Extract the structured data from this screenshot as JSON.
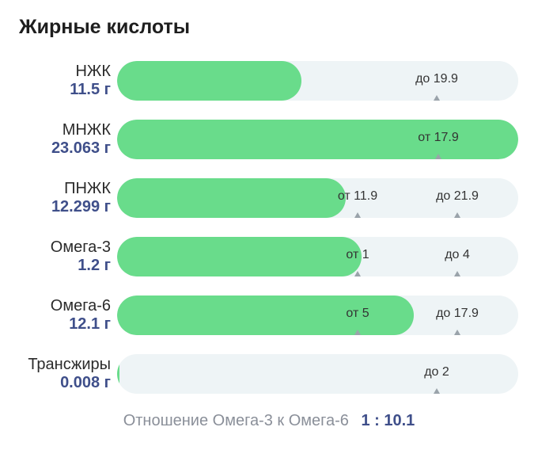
{
  "title": "Жирные кислоты",
  "colors": {
    "fill": "#69dc8b",
    "track": "#eef4f6",
    "amount": "#3f4f8a"
  },
  "chart_data": {
    "type": "bar",
    "orientation": "horizontal",
    "rows": [
      {
        "name": "НЖК",
        "amount": "11.5 г",
        "value": 11.5,
        "fill_fraction": 0.46,
        "markers": [
          {
            "text": "до 19.9",
            "value": 19.9
          }
        ]
      },
      {
        "name": "МНЖК",
        "amount": "23.063 г",
        "value": 23.063,
        "fill_fraction": 1.0,
        "markers": [
          {
            "text": "от 17.9",
            "value": 17.9
          }
        ]
      },
      {
        "name": "ПНЖК",
        "amount": "12.299 г",
        "value": 12.299,
        "fill_fraction": 0.57,
        "markers": [
          {
            "text": "от 11.9",
            "value": 11.9
          },
          {
            "text": "до 21.9",
            "value": 21.9
          }
        ]
      },
      {
        "name": "Омега-3",
        "amount": "1.2 г",
        "value": 1.2,
        "fill_fraction": 0.61,
        "markers": [
          {
            "text": "от 1",
            "value": 1
          },
          {
            "text": "до 4",
            "value": 4
          }
        ]
      },
      {
        "name": "Омега-6",
        "amount": "12.1 г",
        "value": 12.1,
        "fill_fraction": 0.74,
        "markers": [
          {
            "text": "от 5",
            "value": 5
          },
          {
            "text": "до 17.9",
            "value": 17.9
          }
        ]
      },
      {
        "name": "Трансжиры",
        "amount": "0.008 г",
        "value": 0.008,
        "fill_fraction": 0.004,
        "markers": [
          {
            "text": "до 2",
            "value": 2
          }
        ]
      }
    ]
  },
  "ratio": {
    "label": "Отношение Омега-3 к Омега-6",
    "value": "1 : 10.1"
  }
}
